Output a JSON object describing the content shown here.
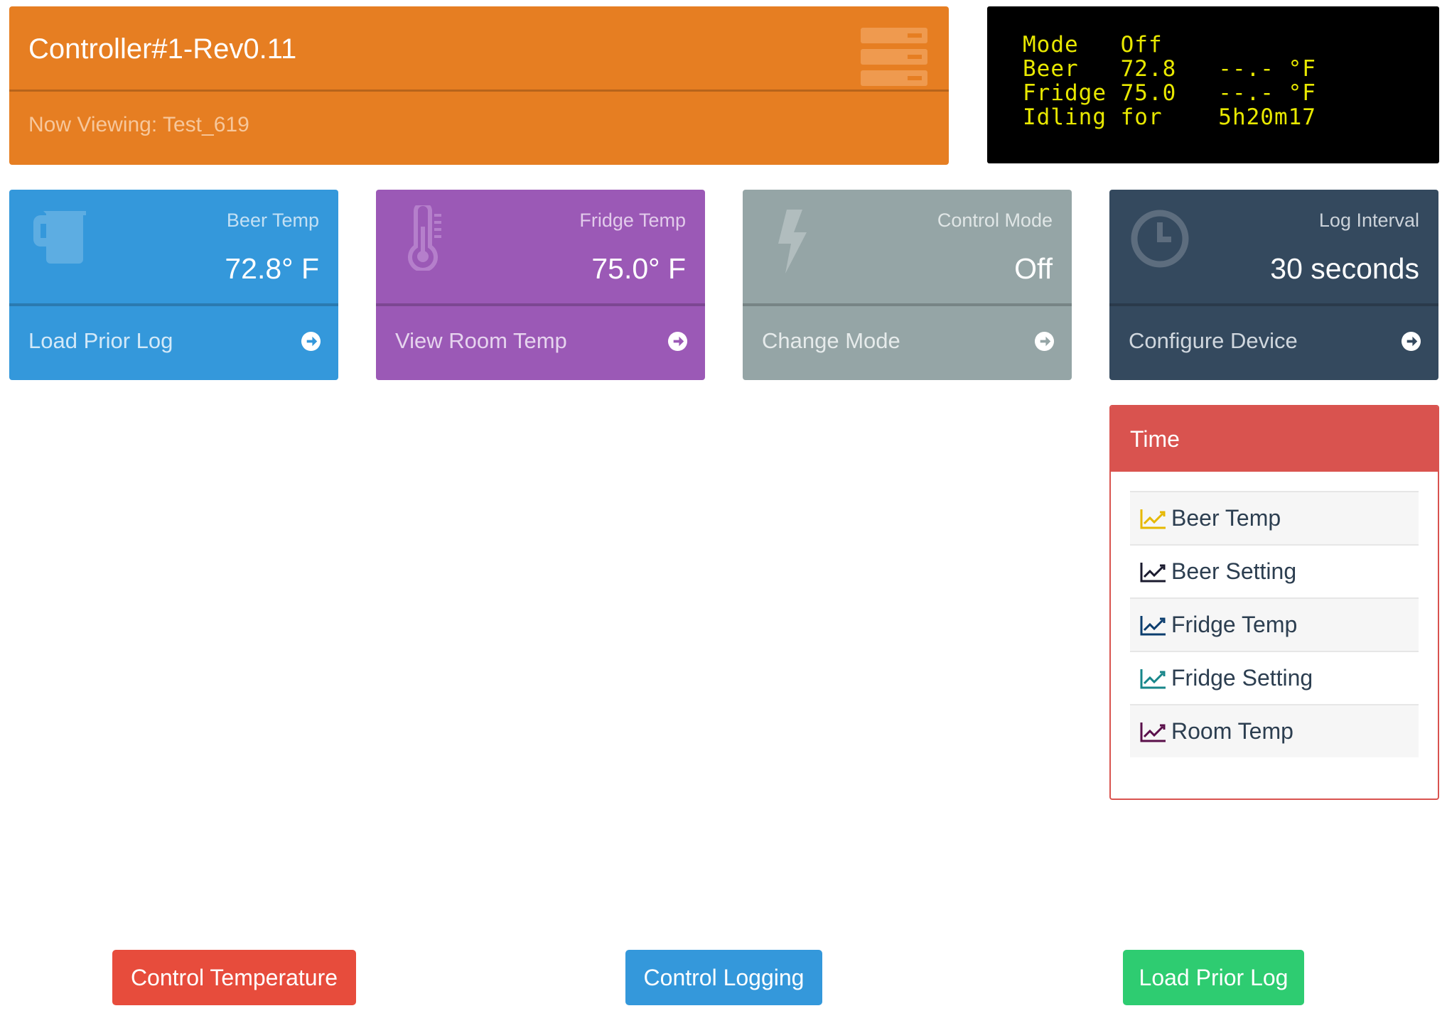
{
  "header": {
    "title": "Controller#1-Rev0.11",
    "subtitle": "Now Viewing: Test_619"
  },
  "lcd": {
    "lines": [
      "Mode   Off",
      "Beer   72.8   --.- °F",
      "Fridge 75.0   --.- °F",
      "Idling for    5h20m17"
    ],
    "text_color": "#e8e800"
  },
  "cards": {
    "beer": {
      "label": "Beer Temp",
      "value": "72.8° F",
      "action": "Load Prior Log",
      "icon": "beer-mug-icon",
      "color": "#3498db"
    },
    "fridge": {
      "label": "Fridge Temp",
      "value": "75.0° F",
      "action": "View Room Temp",
      "icon": "thermometer-icon",
      "color": "#9b59b6"
    },
    "mode": {
      "label": "Control Mode",
      "value": "Off",
      "action": "Change Mode",
      "icon": "lightning-icon",
      "color": "#95a5a6"
    },
    "log": {
      "label": "Log Interval",
      "value": "30 seconds",
      "action": "Configure Device",
      "icon": "clock-icon",
      "color": "#34495e"
    }
  },
  "legend": {
    "title": "Time",
    "items": [
      {
        "label": "Beer Temp",
        "icon_color": "#e6b800"
      },
      {
        "label": "Beer Setting",
        "icon_color": "#1a1a2e"
      },
      {
        "label": "Fridge Temp",
        "icon_color": "#0b3d6e"
      },
      {
        "label": "Fridge Setting",
        "icon_color": "#17868a"
      },
      {
        "label": "Room Temp",
        "icon_color": "#5a0f4a"
      }
    ]
  },
  "buttons": {
    "control_temperature": "Control Temperature",
    "control_logging": "Control Logging",
    "load_prior_log": "Load Prior Log"
  }
}
